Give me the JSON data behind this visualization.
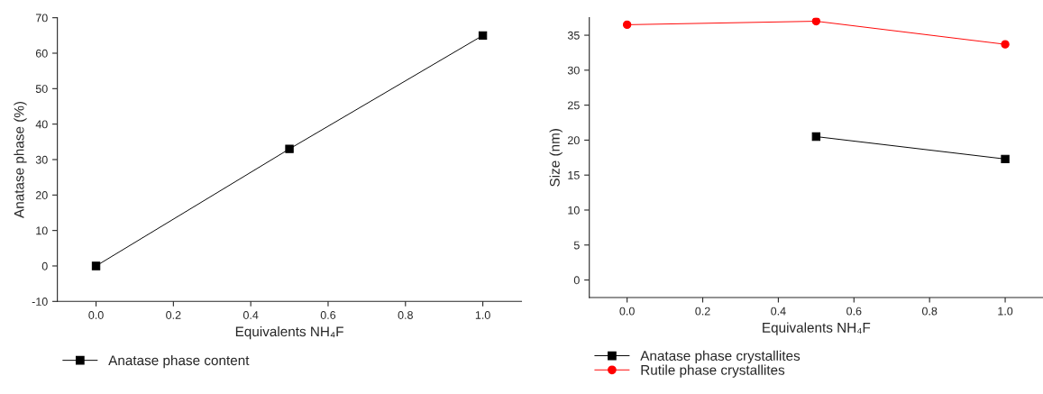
{
  "chart_data": [
    {
      "type": "line",
      "xlabel": "Equivalents NH₄F",
      "ylabel": "Anatase phase (%)",
      "xlim": [
        -0.1,
        1.1
      ],
      "ylim": [
        -10,
        70
      ],
      "xticks": [
        {
          "value": 0,
          "label": "0.0"
        },
        {
          "value": 0.2,
          "label": "0.2"
        },
        {
          "value": 0.4,
          "label": "0.4"
        },
        {
          "value": 0.6,
          "label": "0.6"
        },
        {
          "value": 0.8,
          "label": "0.8"
        },
        {
          "value": 1.0,
          "label": "1.0"
        }
      ],
      "yticks": [
        -10,
        0,
        10,
        20,
        30,
        40,
        50,
        60,
        70
      ],
      "x": [
        0,
        0.5,
        1.0
      ],
      "marker": "square",
      "legend": "bottom",
      "grid": false,
      "series": [
        {
          "name": "Anatase phase content",
          "color": "#000000",
          "values": [
            0,
            33,
            65
          ]
        }
      ]
    },
    {
      "type": "line",
      "xlabel": "Equivalents NH₄F",
      "ylabel": "Size (nm)",
      "xlim": [
        -0.1,
        1.1
      ],
      "ylim": [
        -2.5,
        37.5
      ],
      "xticks": [
        {
          "value": 0,
          "label": "0.0"
        },
        {
          "value": 0.2,
          "label": "0.2"
        },
        {
          "value": 0.4,
          "label": "0.4"
        },
        {
          "value": 0.6,
          "label": "0.6"
        },
        {
          "value": 0.8,
          "label": "0.8"
        },
        {
          "value": 1.0,
          "label": "1.0"
        }
      ],
      "yticks": [
        0,
        5,
        10,
        15,
        20,
        25,
        30,
        35
      ],
      "x": [
        0,
        0.5,
        1.0
      ],
      "legend": "bottom",
      "grid": false,
      "series": [
        {
          "name": "Anatase phase crystallites",
          "color": "#000000",
          "marker": "square",
          "values": [
            null,
            20.5,
            17.3
          ]
        },
        {
          "name": "Rutile phase crystallites",
          "color": "#ff0000",
          "marker": "circle",
          "values": [
            36.5,
            37.0,
            33.7
          ]
        }
      ]
    }
  ]
}
